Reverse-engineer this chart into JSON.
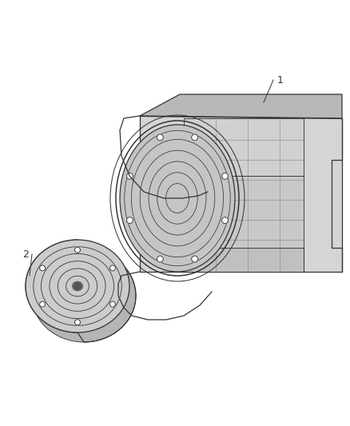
{
  "background_color": "#ffffff",
  "line_color": "#333333",
  "line_width": 0.9,
  "label1": "1",
  "label2": "2",
  "figsize": [
    4.38,
    5.33
  ],
  "dpi": 100,
  "trans_body_color": "#d8d8d8",
  "bell_housing_color": "#cccccc",
  "converter_color": "#d0d0d0"
}
